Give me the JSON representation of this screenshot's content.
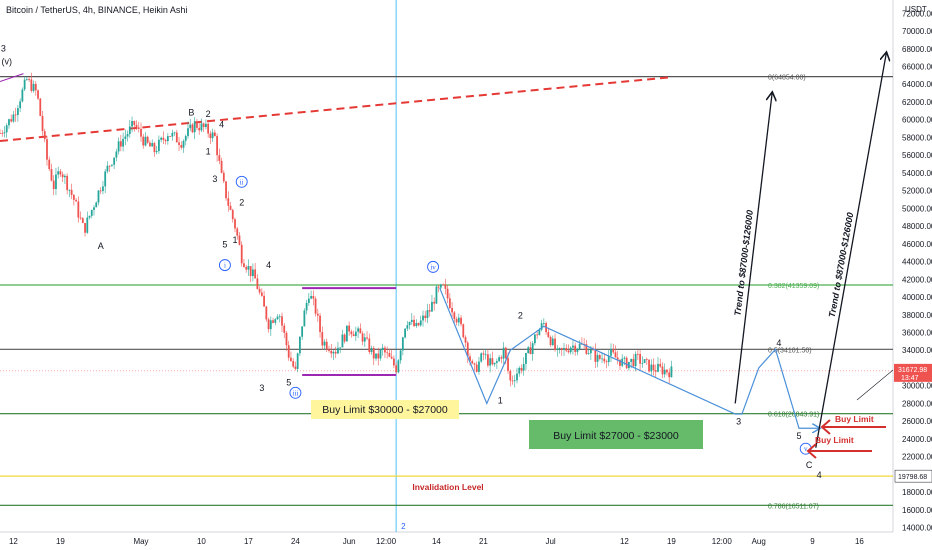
{
  "header": {
    "title": "Bitcoin / TetherUS, 4h, BINANCE, Heikin Ashi"
  },
  "chart_data": {
    "type": "candlestick",
    "currency": "USDT",
    "y_ticks": [
      14000,
      16000,
      18000,
      20000,
      22000,
      24000,
      26000,
      28000,
      30000,
      32000,
      34000,
      36000,
      38000,
      40000,
      42000,
      44000,
      46000,
      48000,
      50000,
      52000,
      54000,
      56000,
      58000,
      60000,
      62000,
      64000,
      66000,
      68000,
      70000,
      72000
    ],
    "ylim": [
      13500,
      73500
    ],
    "x_ticks": [
      {
        "label": "12",
        "day": 0
      },
      {
        "label": "19",
        "day": 7
      },
      {
        "label": "May",
        "day": 19
      },
      {
        "label": "10",
        "day": 28
      },
      {
        "label": "17",
        "day": 35
      },
      {
        "label": "24",
        "day": 42
      },
      {
        "label": "Jun",
        "day": 50
      },
      {
        "label": "12:00",
        "day": 55.5
      },
      {
        "label": "14",
        "day": 63
      },
      {
        "label": "21",
        "day": 70
      },
      {
        "label": "Jul",
        "day": 80
      },
      {
        "label": "12",
        "day": 91
      },
      {
        "label": "19",
        "day": 98
      },
      {
        "label": "12:00",
        "day": 105.5
      },
      {
        "label": "Aug",
        "day": 111
      },
      {
        "label": "9",
        "day": 119
      },
      {
        "label": "16",
        "day": 126
      }
    ],
    "xlim_days": [
      -2,
      131
    ],
    "last_data_day": 98,
    "price": {
      "value": "31672.98",
      "time": "13:47",
      "level": 31672.98
    },
    "price_path": [
      [
        -2,
        58500
      ],
      [
        0,
        60500
      ],
      [
        2,
        64500
      ],
      [
        3.5,
        63000
      ],
      [
        5,
        55500
      ],
      [
        6,
        52500
      ],
      [
        7,
        54500
      ],
      [
        9,
        51000
      ],
      [
        10.5,
        47500
      ],
      [
        12,
        50500
      ],
      [
        14,
        54500
      ],
      [
        16,
        57500
      ],
      [
        18,
        59500
      ],
      [
        19.5,
        57500
      ],
      [
        21,
        56500
      ],
      [
        23,
        58500
      ],
      [
        25,
        57500
      ],
      [
        27,
        59500
      ],
      [
        28.5,
        59000
      ],
      [
        30,
        58000
      ],
      [
        31,
        53500
      ],
      [
        32,
        50500
      ],
      [
        33,
        48000
      ],
      [
        34,
        44500
      ],
      [
        36,
        42000
      ],
      [
        38,
        37000
      ],
      [
        39.5,
        38500
      ],
      [
        41,
        33500
      ],
      [
        42,
        31500
      ],
      [
        43,
        37000
      ],
      [
        44,
        40500
      ],
      [
        45,
        38500
      ],
      [
        46,
        35000
      ],
      [
        48,
        34000
      ],
      [
        50,
        36500
      ],
      [
        52,
        35500
      ],
      [
        54,
        33000
      ],
      [
        55,
        34000
      ],
      [
        57,
        32000
      ],
      [
        58.5,
        37500
      ],
      [
        60,
        36500
      ],
      [
        62,
        38500
      ],
      [
        63,
        40500
      ],
      [
        64,
        41000
      ],
      [
        65.5,
        38500
      ],
      [
        67,
        36000
      ],
      [
        68.5,
        31500
      ],
      [
        70,
        33500
      ],
      [
        71.5,
        32000
      ],
      [
        73,
        34000
      ],
      [
        74,
        30500
      ],
      [
        76,
        32500
      ],
      [
        78,
        36000
      ],
      [
        79,
        37000
      ],
      [
        81,
        33500
      ],
      [
        83,
        34500
      ],
      [
        85,
        34500
      ],
      [
        87,
        33000
      ],
      [
        89,
        33500
      ],
      [
        91,
        32500
      ],
      [
        93,
        33000
      ],
      [
        95,
        32000
      ],
      [
        98,
        31600
      ]
    ],
    "levels": [
      {
        "name": "fib-0",
        "value": 64854,
        "label": "0(64854.00)",
        "color": "#555555",
        "type": "solid"
      },
      {
        "name": "fib-0382",
        "value": 41359,
        "label": "0.382(41359.09)",
        "color": "#4caf50",
        "type": "solid"
      },
      {
        "name": "fib-05",
        "value": 34101.5,
        "label": "0.5(34101.50)",
        "color": "#555555",
        "type": "solid"
      },
      {
        "name": "fib-0618",
        "value": 26843.91,
        "label": "0.618(26843.91)",
        "color": "#2e7d32",
        "type": "solid"
      },
      {
        "name": "invalidation",
        "value": 19798.68,
        "label": "19798.68",
        "color": "#f0d93a",
        "type": "solid"
      },
      {
        "name": "fib-0786",
        "value": 16511.07,
        "label": "0.786(16511.07)",
        "color": "#2e7d32",
        "type": "solid"
      }
    ],
    "trendline": {
      "from": [
        -2,
        57600
      ],
      "to": [
        98,
        64800
      ],
      "color": "#e53935"
    },
    "range_box": {
      "top": 41000,
      "bottom": 31200,
      "start": 43,
      "end": 57,
      "color": "#9c27b0"
    },
    "projection": [
      [
        63.5,
        41000
      ],
      [
        70.5,
        28000
      ],
      [
        74,
        34000
      ],
      [
        79,
        36700
      ],
      [
        107.5,
        26800
      ],
      [
        108.5,
        26800
      ],
      [
        111,
        32000
      ],
      [
        113.5,
        34100
      ],
      [
        117,
        25200
      ],
      [
        120,
        25200
      ]
    ],
    "projection_color": "#4a90d9",
    "arrows": [
      {
        "from": [
          107.5,
          28000
        ],
        "to": [
          113,
          63000
        ],
        "label": "Trend to $87000-$126000"
      },
      {
        "from": [
          119.5,
          23000
        ],
        "to": [
          130,
          67500
        ],
        "label": "Trend to $87000-$126000"
      }
    ],
    "vertical_line": {
      "day": 57,
      "label": "2",
      "color": "#4fc3f7"
    },
    "wave_labels": [
      {
        "text": "3",
        "day": -1.5,
        "price": 67700,
        "bold": true
      },
      {
        "text": "(v)",
        "day": -1,
        "price": 66200
      },
      {
        "text": "A",
        "day": 13,
        "price": 45400,
        "bold": true
      },
      {
        "text": "B",
        "day": 26.5,
        "price": 60500,
        "bold": true
      },
      {
        "text": "2",
        "day": 29,
        "price": 60300
      },
      {
        "text": "4",
        "day": 31,
        "price": 59100
      },
      {
        "text": "1",
        "day": 29,
        "price": 56100
      },
      {
        "text": "3",
        "day": 30,
        "price": 53000
      },
      {
        "text": "2",
        "day": 34,
        "price": 50300
      },
      {
        "text": "1",
        "day": 33,
        "price": 46100
      },
      {
        "text": "5",
        "day": 31.5,
        "price": 45600
      },
      {
        "text": "4",
        "day": 38,
        "price": 43300
      },
      {
        "text": "3",
        "day": 37,
        "price": 29400
      },
      {
        "text": "5",
        "day": 41,
        "price": 30000
      },
      {
        "text": "2",
        "day": 75.5,
        "price": 37600
      },
      {
        "text": "1",
        "day": 72.5,
        "price": 28000
      },
      {
        "text": "3",
        "day": 108,
        "price": 25600
      },
      {
        "text": "4",
        "day": 114,
        "price": 34500
      },
      {
        "text": "5",
        "day": 117,
        "price": 24000
      },
      {
        "text": "C",
        "day": 118.5,
        "price": 20700,
        "bold": true
      },
      {
        "text": "4",
        "day": 120,
        "price": 19600,
        "bold": true
      }
    ],
    "circled_labels": [
      {
        "text": "ii",
        "day": 34,
        "price": 53000
      },
      {
        "text": "i",
        "day": 31.5,
        "price": 43600
      },
      {
        "text": "iii",
        "day": 42,
        "price": 29200
      },
      {
        "text": "iv",
        "day": 62.5,
        "price": 43400
      },
      {
        "text": "v",
        "day": 118,
        "price": 22900
      }
    ],
    "annotations": {
      "buy_limit_1": "Buy Limit $30000 - $27000",
      "buy_limit_2": "Buy Limit $27000 - $23000",
      "buy_limit_right_1": "Buy Limit",
      "buy_limit_right_2": "Buy Limit",
      "invalidation": "Invalidation Level"
    },
    "colors": {
      "candle_up": "#26a69a",
      "candle_down": "#ef5350",
      "box_yellow": "#fff59d",
      "box_green": "#66bb6a",
      "red_arrow": "#d32f2f"
    }
  }
}
